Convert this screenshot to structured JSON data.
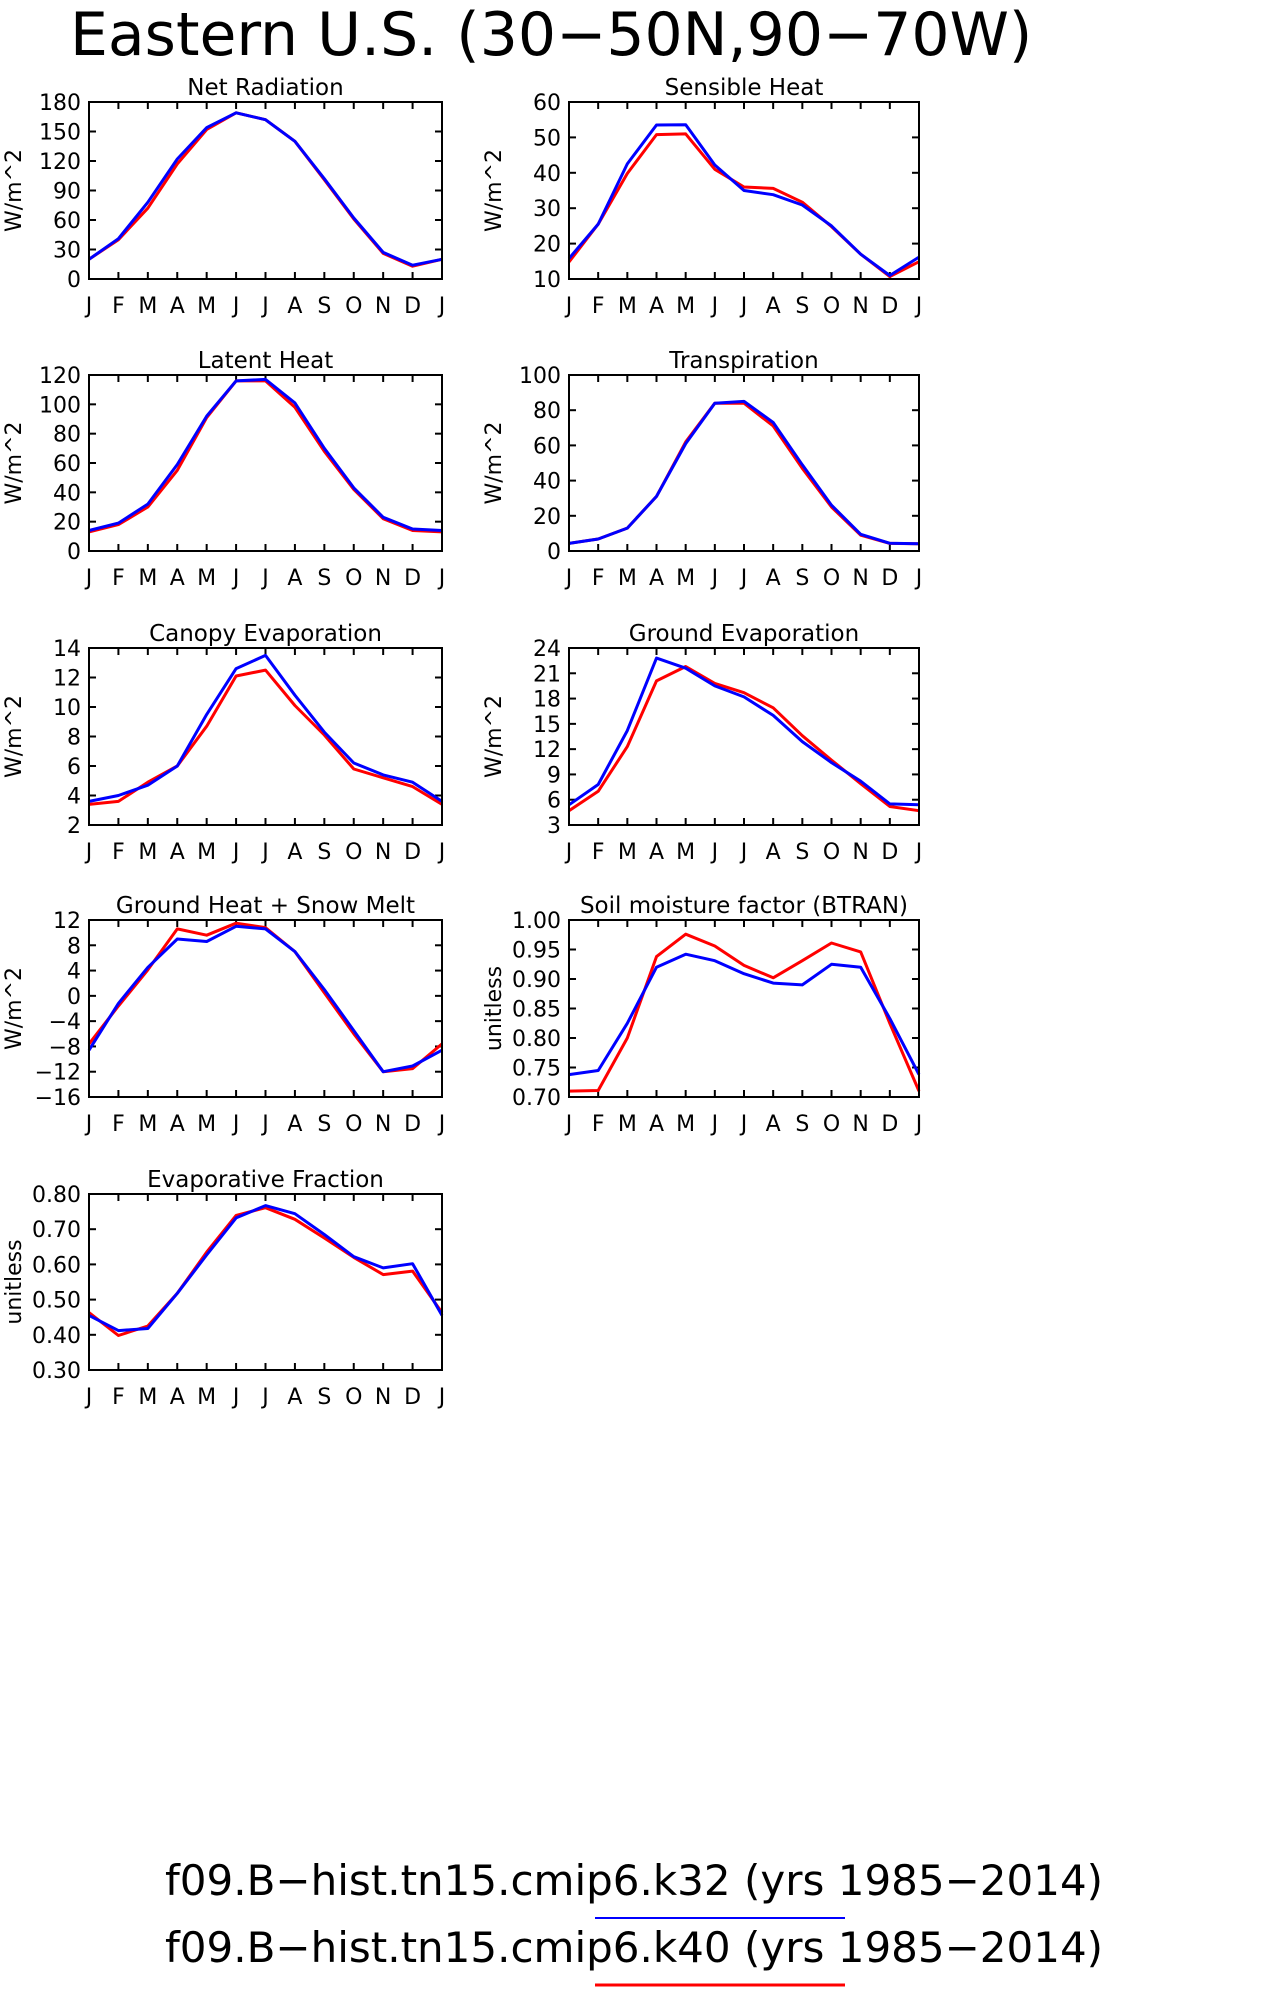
{
  "title": "Eastern U.S. (30−50N,90−70W)",
  "colors": {
    "case1": "#0000ff",
    "case2": "#ff0000"
  },
  "legend": [
    {
      "label": "f09.B−hist.tn15.cmip6.k32 (yrs 1985−2014)",
      "color": "#0000ff"
    },
    {
      "label": "f09.B−hist.tn15.cmip6.k40 (yrs 1985−2014)",
      "color": "#ff0000"
    }
  ],
  "chart_data": [
    {
      "type": "line",
      "title": "Net Radiation",
      "ylabel": "W/m^2",
      "categories": [
        "J",
        "F",
        "M",
        "A",
        "M",
        "J",
        "J",
        "A",
        "S",
        "O",
        "N",
        "D",
        "J"
      ],
      "ylim": [
        0,
        180
      ],
      "yticks": [
        "0",
        "30",
        "60",
        "90",
        "120",
        "150",
        "180"
      ],
      "ytick_values": [
        0,
        30,
        60,
        90,
        120,
        150,
        180
      ],
      "series": [
        {
          "values": [
            20,
            41,
            78,
            122,
            154,
            169,
            162,
            140,
            102,
            62,
            27,
            14,
            20
          ]
        },
        {
          "values": [
            20,
            40,
            72,
            117,
            152,
            169,
            162,
            140,
            101,
            61,
            26,
            13,
            20
          ]
        }
      ]
    },
    {
      "type": "line",
      "title": "Sensible Heat",
      "ylabel": "W/m^2",
      "categories": [
        "J",
        "F",
        "M",
        "A",
        "M",
        "J",
        "J",
        "A",
        "S",
        "O",
        "N",
        "D",
        "J"
      ],
      "ylim": [
        10,
        60
      ],
      "yticks": [
        "10",
        "20",
        "30",
        "40",
        "50",
        "60"
      ],
      "ytick_values": [
        10,
        20,
        30,
        40,
        50,
        60
      ],
      "series": [
        {
          "values": [
            15.8,
            25.5,
            42.5,
            53.5,
            53.6,
            42.2,
            35,
            33.8,
            30.9,
            25,
            17,
            11,
            16.2
          ]
        },
        {
          "values": [
            14.8,
            25.5,
            39.8,
            50.8,
            51,
            41,
            36,
            35.6,
            31.7,
            24.8,
            17,
            10.7,
            14.9
          ]
        }
      ]
    },
    {
      "type": "line",
      "title": "Latent Heat",
      "ylabel": "W/m^2",
      "categories": [
        "J",
        "F",
        "M",
        "A",
        "M",
        "J",
        "J",
        "A",
        "S",
        "O",
        "N",
        "D",
        "J"
      ],
      "ylim": [
        0,
        120
      ],
      "yticks": [
        "0",
        "20",
        "40",
        "60",
        "80",
        "100",
        "120"
      ],
      "ytick_values": [
        0,
        20,
        40,
        60,
        80,
        100,
        120
      ],
      "series": [
        {
          "values": [
            14,
            19,
            32,
            59,
            92,
            116,
            117,
            101,
            70,
            43,
            23,
            15,
            14
          ]
        },
        {
          "values": [
            13,
            18,
            30,
            55,
            91,
            116,
            116,
            98,
            68,
            42,
            22,
            14,
            13
          ]
        }
      ]
    },
    {
      "type": "line",
      "title": "Transpiration",
      "ylabel": "W/m^2",
      "categories": [
        "J",
        "F",
        "M",
        "A",
        "M",
        "J",
        "J",
        "A",
        "S",
        "O",
        "N",
        "D",
        "J"
      ],
      "ylim": [
        0,
        100
      ],
      "yticks": [
        "0",
        "20",
        "40",
        "60",
        "80",
        "100"
      ],
      "ytick_values": [
        0,
        20,
        40,
        60,
        80,
        100
      ],
      "series": [
        {
          "values": [
            4.3,
            6.8,
            13,
            31,
            61,
            84,
            85,
            73,
            49,
            26,
            9.5,
            4.4,
            4.1
          ]
        },
        {
          "values": [
            4.3,
            6.8,
            13,
            31,
            62,
            84,
            84,
            71,
            47,
            25,
            9,
            4.3,
            4.1
          ]
        }
      ]
    },
    {
      "type": "line",
      "title": "Canopy Evaporation",
      "ylabel": "W/m^2",
      "categories": [
        "J",
        "F",
        "M",
        "A",
        "M",
        "J",
        "J",
        "A",
        "S",
        "O",
        "N",
        "D",
        "J"
      ],
      "ylim": [
        2,
        14
      ],
      "yticks": [
        "2",
        "4",
        "6",
        "8",
        "10",
        "12",
        "14"
      ],
      "ytick_values": [
        2,
        4,
        6,
        8,
        10,
        12,
        14
      ],
      "series": [
        {
          "values": [
            3.6,
            4,
            4.7,
            6,
            9.5,
            12.6,
            13.5,
            10.8,
            8.3,
            6.2,
            5.4,
            4.9,
            3.6
          ]
        },
        {
          "values": [
            3.4,
            3.6,
            4.9,
            6,
            8.7,
            12.1,
            12.5,
            10.1,
            8.1,
            5.8,
            5.2,
            4.6,
            3.4
          ]
        }
      ]
    },
    {
      "type": "line",
      "title": "Ground Evaporation",
      "ylabel": "W/m^2",
      "categories": [
        "J",
        "F",
        "M",
        "A",
        "M",
        "J",
        "J",
        "A",
        "S",
        "O",
        "N",
        "D",
        "J"
      ],
      "ylim": [
        3,
        24
      ],
      "yticks": [
        "3",
        "6",
        "9",
        "12",
        "15",
        "18",
        "21",
        "24"
      ],
      "ytick_values": [
        3,
        6,
        9,
        12,
        15,
        18,
        21,
        24
      ],
      "series": [
        {
          "values": [
            5.4,
            7.8,
            14.2,
            22.8,
            21.6,
            19.5,
            18.2,
            16,
            12.9,
            10.4,
            8.2,
            5.5,
            5.4
          ]
        },
        {
          "values": [
            4.7,
            7,
            12.3,
            20.1,
            21.8,
            19.8,
            18.7,
            16.9,
            13.6,
            10.7,
            7.9,
            5.2,
            4.7
          ]
        }
      ]
    },
    {
      "type": "line",
      "title": "Ground Heat + Snow Melt",
      "ylabel": "W/m^2",
      "categories": [
        "J",
        "F",
        "M",
        "A",
        "M",
        "J",
        "J",
        "A",
        "S",
        "O",
        "N",
        "D",
        "J"
      ],
      "ylim": [
        -16,
        12
      ],
      "yticks": [
        "−16",
        "−12",
        "−8",
        "−4",
        "0",
        "4",
        "8",
        "12"
      ],
      "ytick_values": [
        -16,
        -12,
        -8,
        -4,
        0,
        4,
        8,
        12
      ],
      "series": [
        {
          "values": [
            -8.6,
            -1.2,
            4.5,
            9,
            8.6,
            11,
            10.6,
            7,
            1,
            -5.5,
            -12,
            -11.1,
            -8.6
          ]
        },
        {
          "values": [
            -7.6,
            -1.6,
            4.1,
            10.6,
            9.6,
            11.5,
            10.8,
            7,
            0.5,
            -6,
            -12,
            -11.5,
            -7.6
          ]
        }
      ]
    },
    {
      "type": "line",
      "title": "Soil moisture factor (BTRAN)",
      "ylabel": "unitless",
      "categories": [
        "J",
        "F",
        "M",
        "A",
        "M",
        "J",
        "J",
        "A",
        "S",
        "O",
        "N",
        "D",
        "J"
      ],
      "ylim": [
        0.7,
        1.0
      ],
      "yticks": [
        "0.70",
        "0.75",
        "0.80",
        "0.85",
        "0.90",
        "0.95",
        "1.00"
      ],
      "ytick_values": [
        0.7,
        0.75,
        0.8,
        0.85,
        0.9,
        0.95,
        1.0
      ],
      "series": [
        {
          "values": [
            0.738,
            0.745,
            0.825,
            0.92,
            0.942,
            0.931,
            0.909,
            0.893,
            0.89,
            0.925,
            0.92,
            0.833,
            0.738
          ]
        },
        {
          "values": [
            0.71,
            0.711,
            0.8,
            0.938,
            0.976,
            0.956,
            0.923,
            0.902,
            0.931,
            0.961,
            0.946,
            0.825,
            0.71
          ]
        }
      ]
    },
    {
      "type": "line",
      "title": "Evaporative Fraction",
      "ylabel": "unitless",
      "categories": [
        "J",
        "F",
        "M",
        "A",
        "M",
        "J",
        "J",
        "A",
        "S",
        "O",
        "N",
        "D",
        "J"
      ],
      "ylim": [
        0.3,
        0.8
      ],
      "yticks": [
        "0.30",
        "0.40",
        "0.50",
        "0.60",
        "0.70",
        "0.80"
      ],
      "ytick_values": [
        0.3,
        0.4,
        0.5,
        0.6,
        0.7,
        0.8
      ],
      "series": [
        {
          "values": [
            0.455,
            0.412,
            0.418,
            0.518,
            0.627,
            0.732,
            0.767,
            0.744,
            0.685,
            0.622,
            0.59,
            0.602,
            0.455
          ]
        },
        {
          "values": [
            0.463,
            0.398,
            0.425,
            0.518,
            0.635,
            0.739,
            0.761,
            0.728,
            0.675,
            0.62,
            0.571,
            0.581,
            0.463
          ]
        }
      ]
    }
  ]
}
